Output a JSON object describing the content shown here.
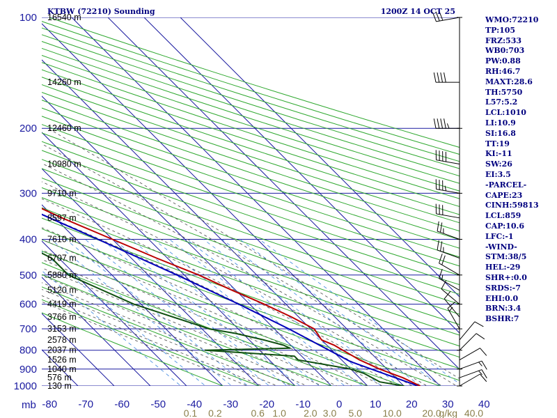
{
  "chart_data": {
    "type": "skew-t",
    "title": "KTBW (72210) Sounding",
    "time_label": "1200Z 14 OCT 25",
    "pressure_axis_label": "mb",
    "mixing_ratio_unit": "g/kg",
    "pressure_levels": [
      "100",
      "200",
      "300",
      "400",
      "500",
      "600",
      "700",
      "800",
      "900",
      "1000"
    ],
    "temperature_ticks": [
      "-80",
      "-70",
      "-60",
      "-50",
      "-40",
      "-30",
      "-20",
      "-10",
      "0",
      "10",
      "20",
      "30",
      "40"
    ],
    "mixing_ratio_ticks": [
      "0.1",
      "0.2",
      "0.6",
      "1.0",
      "2.0",
      "3.0",
      "5.0",
      "10.0",
      "20.0",
      "40.0"
    ],
    "height_labels": [
      {
        "p": 100,
        "text": "16540 m"
      },
      {
        "p": 150,
        "text": "14260 m"
      },
      {
        "p": 200,
        "text": "12460 m"
      },
      {
        "p": 250,
        "text": "10980 m"
      },
      {
        "p": 300,
        "text": "9710 m"
      },
      {
        "p": 350,
        "text": "8597 m"
      },
      {
        "p": 400,
        "text": "7610 m"
      },
      {
        "p": 450,
        "text": "6707 m"
      },
      {
        "p": 500,
        "text": "5880 m"
      },
      {
        "p": 550,
        "text": "5120 m"
      },
      {
        "p": 600,
        "text": "4419 m"
      },
      {
        "p": 650,
        "text": "3766 m"
      },
      {
        "p": 700,
        "text": "3153 m"
      },
      {
        "p": 750,
        "text": "2578 m"
      },
      {
        "p": 800,
        "text": "2037 m"
      },
      {
        "p": 850,
        "text": "1526 m"
      },
      {
        "p": 900,
        "text": "1040 m"
      },
      {
        "p": 950,
        "text": "576 m"
      },
      {
        "p": 1000,
        "text": "130 m"
      }
    ],
    "temperature_profile": [
      {
        "p": 1013,
        "t": 22.5
      },
      {
        "p": 1000,
        "t": 24.5
      },
      {
        "p": 950,
        "t": 22.0
      },
      {
        "p": 925,
        "t": 20.0
      },
      {
        "p": 900,
        "t": 18.0
      },
      {
        "p": 850,
        "t": 15.0
      },
      {
        "p": 800,
        "t": 13.0
      },
      {
        "p": 775,
        "t": 12.0
      },
      {
        "p": 750,
        "t": 10.0
      },
      {
        "p": 700,
        "t": 11.0
      },
      {
        "p": 650,
        "t": 8.0
      },
      {
        "p": 600,
        "t": 4.0
      },
      {
        "p": 550,
        "t": -1.0
      },
      {
        "p": 500,
        "t": -6.0
      },
      {
        "p": 450,
        "t": -13.0
      },
      {
        "p": 400,
        "t": -20.0
      },
      {
        "p": 350,
        "t": -28.0
      },
      {
        "p": 300,
        "t": -36.0
      },
      {
        "p": 250,
        "t": -44.0
      },
      {
        "p": 200,
        "t": -55.0
      },
      {
        "p": 150,
        "t": -68.0
      },
      {
        "p": 130,
        "t": -72.0
      },
      {
        "p": 115,
        "t": -72.0
      },
      {
        "p": 100,
        "t": -74.0
      }
    ],
    "dewpoint_profile": [
      {
        "p": 1013,
        "t": 18.0
      },
      {
        "p": 1000,
        "t": 20.0
      },
      {
        "p": 975,
        "t": 14.5
      },
      {
        "p": 925,
        "t": 12.5
      },
      {
        "p": 900,
        "t": 10.0
      },
      {
        "p": 870,
        "t": 3.0
      },
      {
        "p": 850,
        "t": -2.0
      },
      {
        "p": 830,
        "t": -2.0
      },
      {
        "p": 800,
        "t": -25.0
      },
      {
        "p": 790,
        "t": -1.0
      },
      {
        "p": 775,
        "t": -2.0
      },
      {
        "p": 750,
        "t": -6.0
      },
      {
        "p": 720,
        "t": -12.0
      },
      {
        "p": 700,
        "t": -18.0
      },
      {
        "p": 600,
        "t": -32.0
      },
      {
        "p": 500,
        "t": -42.0
      },
      {
        "p": 450,
        "t": -42.0
      },
      {
        "p": 400,
        "t": -47.0
      },
      {
        "p": 330,
        "t": -40.0
      },
      {
        "p": 320,
        "t": -62.0
      },
      {
        "p": 280,
        "t": -65.0
      },
      {
        "p": 250,
        "t": -68.0
      },
      {
        "p": 220,
        "t": -76.0
      }
    ],
    "parcel_profile": [
      {
        "p": 1013,
        "t": 25.0
      },
      {
        "p": 859,
        "t": 12.0
      },
      {
        "p": 700,
        "t": 4.0
      },
      {
        "p": 600,
        "t": -3.0
      },
      {
        "p": 500,
        "t": -12.0
      },
      {
        "p": 400,
        "t": -24.0
      },
      {
        "p": 300,
        "t": -40.0
      },
      {
        "p": 200,
        "t": -62.0
      },
      {
        "p": 150,
        "t": -76.0
      }
    ],
    "wind_barbs": [
      {
        "p": 1000,
        "dir": 60,
        "speed": 10
      },
      {
        "p": 950,
        "dir": 70,
        "speed": 15
      },
      {
        "p": 900,
        "dir": 70,
        "speed": 15
      },
      {
        "p": 850,
        "dir": 60,
        "speed": 10
      },
      {
        "p": 800,
        "dir": 45,
        "speed": 10
      },
      {
        "p": 750,
        "dir": 40,
        "speed": 10
      },
      {
        "p": 700,
        "dir": 330,
        "speed": 15
      },
      {
        "p": 650,
        "dir": 320,
        "speed": 10
      },
      {
        "p": 600,
        "dir": 310,
        "speed": 10
      },
      {
        "p": 550,
        "dir": 300,
        "speed": 15
      },
      {
        "p": 500,
        "dir": 300,
        "speed": 20
      },
      {
        "p": 450,
        "dir": 290,
        "speed": 25
      },
      {
        "p": 400,
        "dir": 290,
        "speed": 25
      },
      {
        "p": 350,
        "dir": 280,
        "speed": 30
      },
      {
        "p": 300,
        "dir": 280,
        "speed": 35
      },
      {
        "p": 250,
        "dir": 280,
        "speed": 40
      },
      {
        "p": 200,
        "dir": 270,
        "speed": 45
      },
      {
        "p": 150,
        "dir": 270,
        "speed": 40
      },
      {
        "p": 100,
        "dir": 260,
        "speed": 30
      }
    ],
    "stats": [
      "WMO:72210",
      "TP:105",
      "FRZ:533",
      "WB0:703",
      "PW:0.88",
      "RH:46.7",
      "MAXT:28.6",
      "TH:5750",
      "L57:5.2",
      "LCL:1010",
      "LI:10.9",
      "SI:16.8",
      "TT:19",
      "KI:-11",
      "SW:26",
      "EI:3.5",
      "-PARCEL-",
      "CAPE:23",
      "CINH:59813",
      "LCL:859",
      "CAP:10.6",
      "LFC:-1",
      "-WIND-",
      "STM:38/5",
      "HEL:-29",
      "SHR+:0.0",
      "SRDS:-7",
      "EHI:0.0",
      "BRN:3.4",
      "BSHR:7"
    ],
    "colors": {
      "grid": "#1a1aa0",
      "dry_adiabat": "#2fa82f",
      "moist_adiabat": "#5c5c5c",
      "mixing_ratio": "#4a8fe0",
      "temperature": "#bb0000",
      "dewpoint": "#0f4f0f",
      "parcel": "#0000bb",
      "text": "#00007f",
      "mr_labels": "#8a7f4a"
    }
  }
}
